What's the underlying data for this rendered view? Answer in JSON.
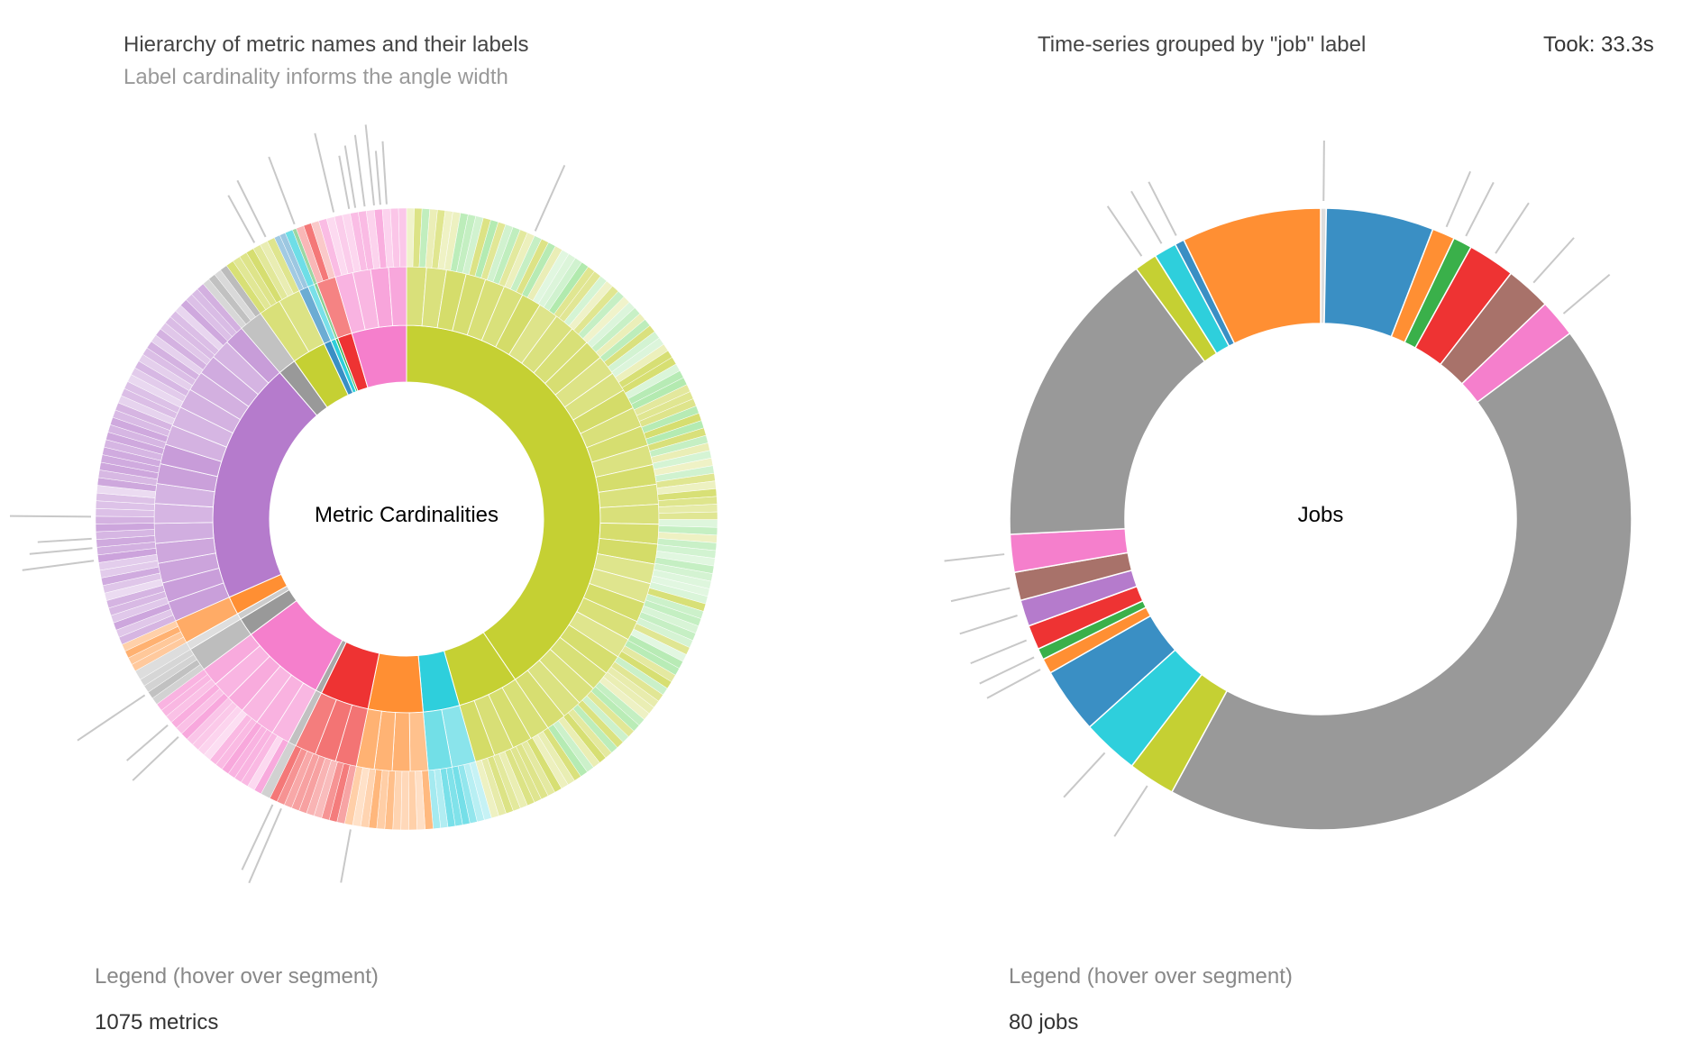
{
  "took_label": "Took: 33.3s",
  "chart_data": [
    {
      "type": "sunburst",
      "title": "Hierarchy of metric names and their labels",
      "subtitle": "Label cardinality informs the angle width",
      "center_label": "Metric Cardinalities",
      "legend_hint": "Legend (hover over segment)",
      "count_label": "1075 metrics",
      "rings": 3,
      "inner_segments": [
        {
          "color": "#c5d033",
          "value": 40.0
        },
        {
          "color": "#c5d033",
          "value": 5.0
        },
        {
          "color": "#2ecfdc",
          "value": 3.0
        },
        {
          "color": "#ff8f33",
          "value": 4.5
        },
        {
          "color": "#ee3333",
          "value": 4.0
        },
        {
          "color": "#a9a9a9",
          "value": 0.5
        },
        {
          "color": "#f57fcc",
          "value": 7.0
        },
        {
          "color": "#999999",
          "value": 1.5
        },
        {
          "color": "#cccccc",
          "value": 0.5
        },
        {
          "color": "#ff8f33",
          "value": 1.5
        },
        {
          "color": "#b57bcc",
          "value": 20.0
        },
        {
          "color": "#999999",
          "value": 1.5
        },
        {
          "color": "#c5d033",
          "value": 2.8
        },
        {
          "color": "#3a8fc4",
          "value": 0.6
        },
        {
          "color": "#2ecfdc",
          "value": 0.4
        },
        {
          "color": "#3ab04a",
          "value": 0.2
        },
        {
          "color": "#ee3333",
          "value": 1.2
        },
        {
          "color": "#f57fcc",
          "value": 4.5
        }
      ]
    },
    {
      "type": "donut",
      "title": "Time-series grouped by \"job\" label",
      "center_label": "Jobs",
      "legend_hint": "Legend (hover over segment)",
      "count_label": "80 jobs",
      "segments": [
        {
          "color": "#dddddd",
          "value": 0.3
        },
        {
          "color": "#3a8fc4",
          "value": 5.7
        },
        {
          "color": "#ff8f33",
          "value": 1.2
        },
        {
          "color": "#3ab04a",
          "value": 1.0
        },
        {
          "color": "#ee3333",
          "value": 2.5
        },
        {
          "color": "#a8726a",
          "value": 2.4
        },
        {
          "color": "#f57fcc",
          "value": 2.0
        },
        {
          "color": "#999999",
          "value": 44.0
        },
        {
          "color": "#c5d033",
          "value": 2.5
        },
        {
          "color": "#2ecfdc",
          "value": 3.0
        },
        {
          "color": "#3a8fc4",
          "value": 3.5
        },
        {
          "color": "#ff8f33",
          "value": 0.8
        },
        {
          "color": "#3ab04a",
          "value": 0.6
        },
        {
          "color": "#ee3333",
          "value": 1.3
        },
        {
          "color": "#b57bcc",
          "value": 1.4
        },
        {
          "color": "#a8726a",
          "value": 1.5
        },
        {
          "color": "#f57fcc",
          "value": 2.0
        },
        {
          "color": "#999999",
          "value": 16.0
        },
        {
          "color": "#c5d033",
          "value": 1.2
        },
        {
          "color": "#2ecfdc",
          "value": 1.2
        },
        {
          "color": "#3a8fc4",
          "value": 0.5
        },
        {
          "color": "#ff8f33",
          "value": 7.4
        }
      ]
    }
  ]
}
